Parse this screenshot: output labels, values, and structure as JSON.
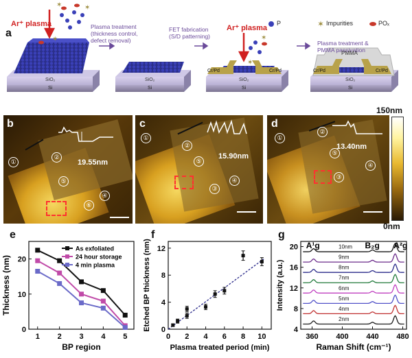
{
  "panel_labels": {
    "a": "a",
    "b": "b",
    "c": "c",
    "d": "d",
    "e": "e",
    "f": "f",
    "g": "g"
  },
  "schematic": {
    "ar_plasma_1": "Ar⁺ plasma",
    "ar_plasma_2": "Ar⁺ plasma",
    "step1": "Plasma treatment\n(thickness control,\ndefect removal)",
    "step2": "FET fabrication\n(S/D patterning)",
    "step3": "Plasma treatment &\nPMMA passivation",
    "legend_p": "P",
    "legend_imp": "Impurities",
    "legend_pox": "POₓ",
    "sio2": "SiO₂",
    "si": "Si",
    "crpd": "Cr/Pd",
    "pmma": "PMMA"
  },
  "afm": {
    "b_height": "19.55nm",
    "c_height": "15.90nm",
    "d_height": "13.40nm",
    "colorbar_top": "150nm",
    "colorbar_bottom": "0nm",
    "b_regions": [
      "①",
      "②",
      "④",
      "⑤",
      "⑥"
    ],
    "c_regions": [
      "①",
      "②",
      "③",
      "④",
      "⑤"
    ],
    "d_regions": [
      "①",
      "②",
      "③",
      "④",
      "⑤"
    ]
  },
  "chart_data": [
    {
      "type": "line",
      "panel": "e",
      "xlabel": "BP region",
      "ylabel": "Thickness (nm)",
      "x": [
        1,
        2,
        3,
        4,
        5
      ],
      "xlim": [
        0.6,
        5.4
      ],
      "ylim": [
        0,
        25
      ],
      "yticks": [
        0,
        10,
        20
      ],
      "series": [
        {
          "name": "As exfoliated",
          "color": "#111111",
          "values": [
            22.5,
            19.5,
            13.5,
            11,
            4
          ]
        },
        {
          "name": "24 hour storage",
          "color": "#c04aa8",
          "values": [
            19.5,
            16,
            10,
            8,
            1
          ]
        },
        {
          "name": "4 min plasma",
          "color": "#6a6ac8",
          "values": [
            16.5,
            13,
            7.5,
            6,
            0.5
          ]
        }
      ]
    },
    {
      "type": "scatter",
      "panel": "f",
      "xlabel": "Plasma treated period (min)",
      "ylabel": "Etched BP thickness (nm)",
      "xlim": [
        0,
        11
      ],
      "ylim": [
        0,
        13
      ],
      "xticks": [
        0,
        2,
        4,
        6,
        8,
        10
      ],
      "yticks": [
        0,
        4,
        8,
        12
      ],
      "points": [
        {
          "x": 0.5,
          "y": 0.6,
          "err": 0.2
        },
        {
          "x": 1,
          "y": 1.2,
          "err": 0.3
        },
        {
          "x": 2,
          "y": 2.0,
          "err": 0.4
        },
        {
          "x": 2,
          "y": 3.0,
          "err": 0.4
        },
        {
          "x": 4,
          "y": 3.3,
          "err": 0.4
        },
        {
          "x": 5,
          "y": 5.2,
          "err": 0.5
        },
        {
          "x": 6,
          "y": 5.7,
          "err": 0.5
        },
        {
          "x": 8,
          "y": 10.9,
          "err": 0.7
        },
        {
          "x": 10,
          "y": 10.0,
          "err": 0.6
        }
      ],
      "fit": [
        [
          0,
          0
        ],
        [
          10.2,
          10.4
        ]
      ]
    },
    {
      "type": "line",
      "panel": "g",
      "xlabel": "Raman Shift (cm⁻¹)",
      "ylabel": "Intensity (a.u.)",
      "xlim": [
        345,
        485
      ],
      "ylim": [
        4,
        21
      ],
      "xticks": [
        360,
        400,
        440,
        480
      ],
      "yticks": [
        4,
        8,
        12,
        16,
        20
      ],
      "peaks": [
        "A¹g",
        "B₂g",
        "A²g"
      ],
      "series": [
        {
          "name": "2nm",
          "color": "#1a1a1a",
          "offset": 5
        },
        {
          "name": "4nm",
          "color": "#c03030",
          "offset": 7
        },
        {
          "name": "5nm",
          "color": "#5050c8",
          "offset": 9
        },
        {
          "name": "6nm",
          "color": "#c040c0",
          "offset": 11
        },
        {
          "name": "7nm",
          "color": "#207a3a",
          "offset": 13
        },
        {
          "name": "8nm",
          "color": "#2a2a8a",
          "offset": 15
        },
        {
          "name": "9nm",
          "color": "#6a2a8a",
          "offset": 17
        },
        {
          "name": "10nm",
          "color": "#111111",
          "offset": 19
        }
      ]
    }
  ]
}
